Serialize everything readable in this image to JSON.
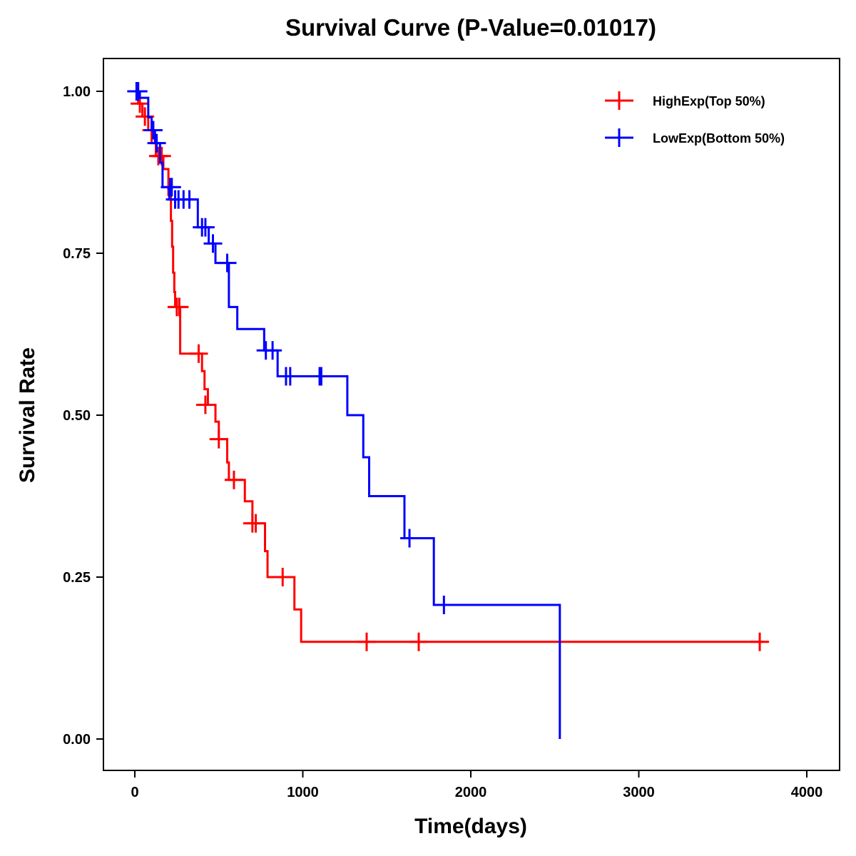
{
  "chart_data": {
    "type": "line",
    "subtype": "kaplan-meier-step",
    "title": "Survival Curve (P-Value=0.01017)",
    "xlabel": "Time(days)",
    "ylabel": "Survival Rate",
    "xlim": [
      -180,
      4200
    ],
    "ylim": [
      -0.048,
      1.05
    ],
    "xticks": [
      0,
      1000,
      2000,
      3000,
      4000
    ],
    "xtick_labels": [
      "0",
      "1000",
      "2000",
      "3000",
      "4000"
    ],
    "yticks": [
      0,
      0.25,
      0.5,
      0.75,
      1.0
    ],
    "ytick_labels": [
      "0.00",
      "0.25",
      "0.50",
      "0.75",
      "1.00"
    ],
    "grid": false,
    "legend_position": "top-right",
    "series": [
      {
        "name": "HighExp(Top 50%)",
        "color": "#ff0000",
        "steps": [
          [
            0,
            1.0
          ],
          [
            20,
            0.981
          ],
          [
            45,
            0.961
          ],
          [
            80,
            0.94
          ],
          [
            100,
            0.92
          ],
          [
            125,
            0.9
          ],
          [
            170,
            0.88
          ],
          [
            200,
            0.84
          ],
          [
            215,
            0.8
          ],
          [
            222,
            0.76
          ],
          [
            228,
            0.72
          ],
          [
            235,
            0.69
          ],
          [
            240,
            0.667
          ],
          [
            270,
            0.595
          ],
          [
            400,
            0.568
          ],
          [
            415,
            0.54
          ],
          [
            435,
            0.516
          ],
          [
            480,
            0.49
          ],
          [
            500,
            0.463
          ],
          [
            550,
            0.427
          ],
          [
            560,
            0.4
          ],
          [
            655,
            0.367
          ],
          [
            700,
            0.333
          ],
          [
            775,
            0.29
          ],
          [
            790,
            0.25
          ],
          [
            950,
            0.2
          ],
          [
            990,
            0.15
          ],
          [
            3740,
            0.15
          ]
        ],
        "censored": [
          [
            30,
            0.981
          ],
          [
            60,
            0.961
          ],
          [
            100,
            0.94
          ],
          [
            140,
            0.9
          ],
          [
            160,
            0.9
          ],
          [
            250,
            0.667
          ],
          [
            265,
            0.667
          ],
          [
            380,
            0.595
          ],
          [
            420,
            0.516
          ],
          [
            500,
            0.463
          ],
          [
            590,
            0.4
          ],
          [
            700,
            0.333
          ],
          [
            720,
            0.333
          ],
          [
            880,
            0.25
          ],
          [
            1380,
            0.15
          ],
          [
            1690,
            0.15
          ],
          [
            3720,
            0.15
          ]
        ]
      },
      {
        "name": "LowExp(Bottom 50%)",
        "color": "#0000ff",
        "steps": [
          [
            0,
            1.0
          ],
          [
            30,
            0.99
          ],
          [
            80,
            0.96
          ],
          [
            100,
            0.94
          ],
          [
            120,
            0.92
          ],
          [
            150,
            0.89
          ],
          [
            165,
            0.852
          ],
          [
            200,
            0.85
          ],
          [
            205,
            0.833
          ],
          [
            375,
            0.79
          ],
          [
            440,
            0.765
          ],
          [
            480,
            0.735
          ],
          [
            560,
            0.667
          ],
          [
            610,
            0.633
          ],
          [
            770,
            0.6
          ],
          [
            850,
            0.56
          ],
          [
            1265,
            0.5
          ],
          [
            1360,
            0.435
          ],
          [
            1395,
            0.375
          ],
          [
            1605,
            0.31
          ],
          [
            1780,
            0.207
          ],
          [
            2530,
            0.0
          ]
        ],
        "censored": [
          [
            10,
            1.0
          ],
          [
            20,
            1.0
          ],
          [
            110,
            0.94
          ],
          [
            130,
            0.92
          ],
          [
            210,
            0.852
          ],
          [
            220,
            0.852
          ],
          [
            240,
            0.833
          ],
          [
            260,
            0.833
          ],
          [
            290,
            0.833
          ],
          [
            325,
            0.833
          ],
          [
            400,
            0.79
          ],
          [
            420,
            0.79
          ],
          [
            465,
            0.765
          ],
          [
            550,
            0.735
          ],
          [
            780,
            0.6
          ],
          [
            820,
            0.6
          ],
          [
            900,
            0.56
          ],
          [
            925,
            0.56
          ],
          [
            1100,
            0.56
          ],
          [
            1110,
            0.56
          ],
          [
            1635,
            0.31
          ],
          [
            1840,
            0.207
          ]
        ]
      }
    ]
  }
}
